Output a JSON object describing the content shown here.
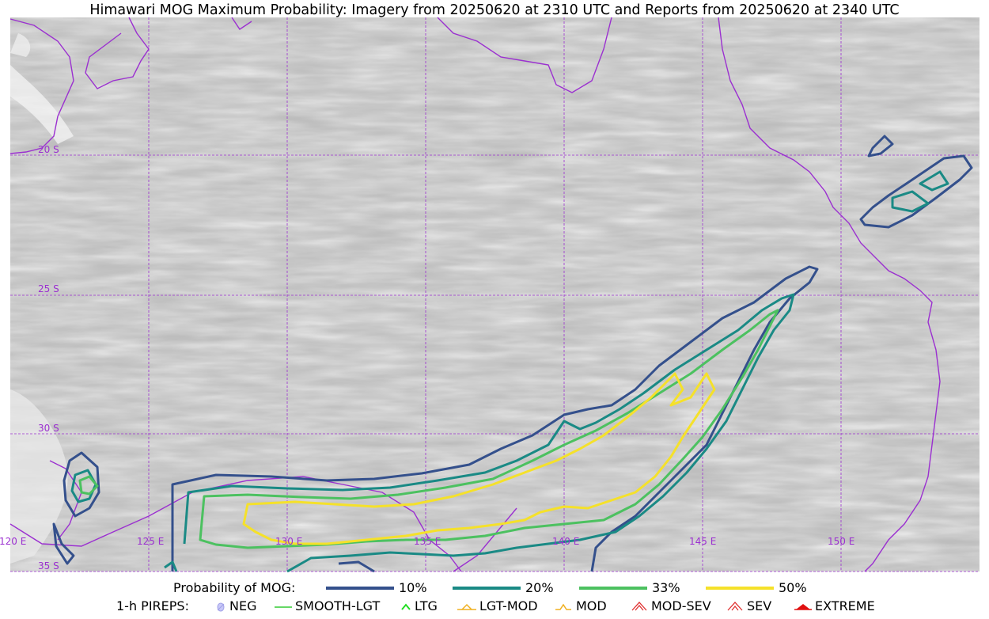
{
  "title": "Himawari MOG Maximum Probability: Imagery from 20250620 at 2310 UTC and Reports from 20250620 at 2340 UTC",
  "map": {
    "lat_labels": [
      "20 S",
      "25 S",
      "30 S",
      "35 S"
    ],
    "lon_labels": [
      "120 E",
      "125 E",
      "130 E",
      "135 E",
      "140 E",
      "145 E",
      "150 E"
    ],
    "gridline_color": "#9b30d0",
    "coastline_color": "#9b30d0"
  },
  "legend": {
    "probability_label": "Probability of MOG:",
    "probability_levels": [
      {
        "label": "10%",
        "color": "#34508c"
      },
      {
        "label": "20%",
        "color": "#1a8a85"
      },
      {
        "label": "33%",
        "color": "#4cc160"
      },
      {
        "label": "50%",
        "color": "#f5e12a"
      }
    ],
    "pireps_label": "1-h PIREPS:",
    "pireps": [
      {
        "label": "NEG",
        "color": "#b0b0f0",
        "icon": "neg-icon"
      },
      {
        "label": "SMOOTH-LGT",
        "color": "#33cc33",
        "icon": "smooth-lgt-icon"
      },
      {
        "label": "LTG",
        "color": "#22dd22",
        "icon": "ltg-icon"
      },
      {
        "label": "LGT-MOD",
        "color": "#f0b020",
        "icon": "lgt-mod-icon"
      },
      {
        "label": "MOD",
        "color": "#f0b020",
        "icon": "mod-icon"
      },
      {
        "label": "MOD-SEV",
        "color": "#e03030",
        "icon": "mod-sev-icon"
      },
      {
        "label": "SEV",
        "color": "#e03030",
        "icon": "sev-icon"
      },
      {
        "label": "EXTREME",
        "color": "#e01010",
        "icon": "extreme-icon"
      }
    ]
  }
}
